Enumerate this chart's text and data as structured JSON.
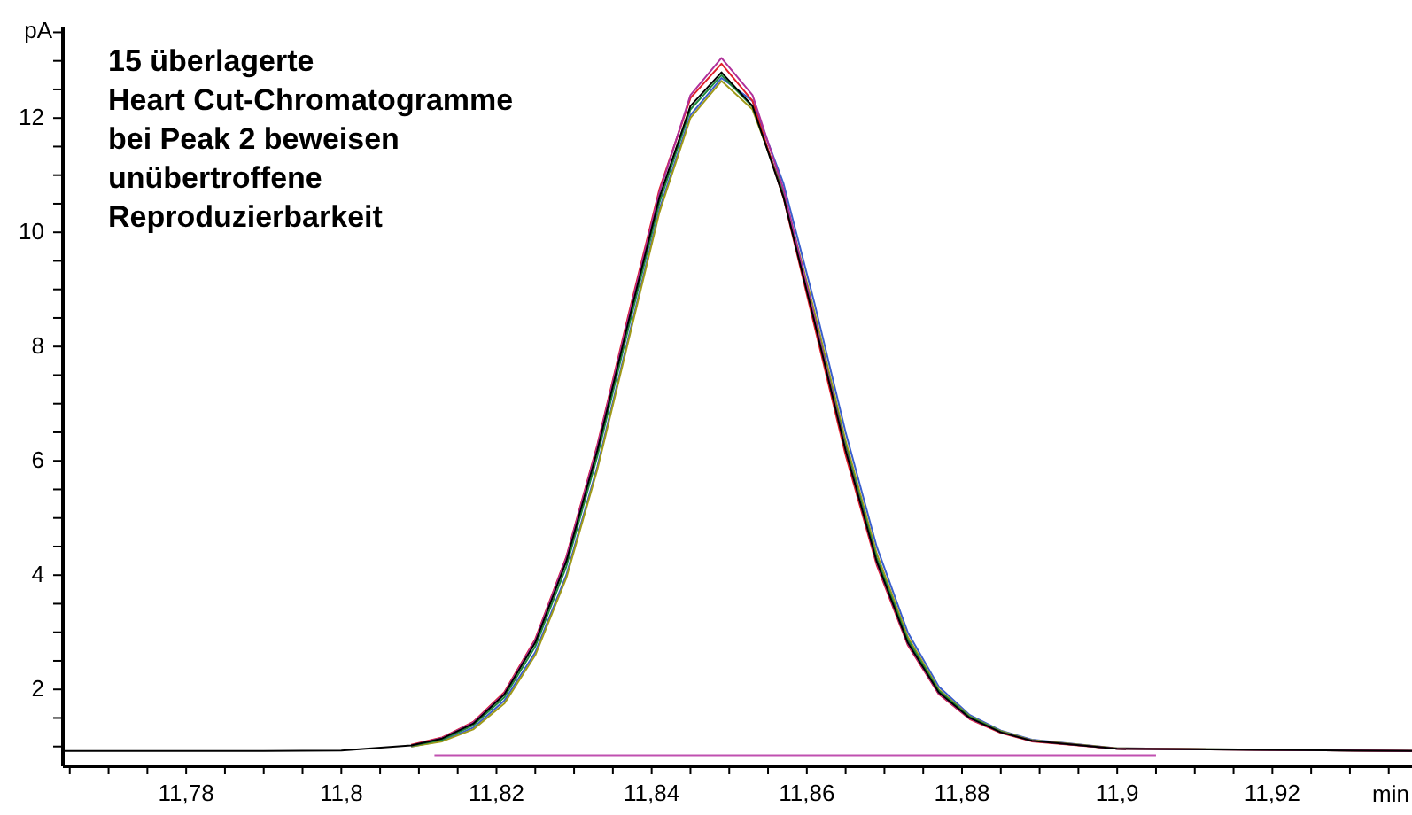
{
  "chart_data": {
    "type": "line",
    "title": "15 überlagerte\nHeart Cut-Chromatogramme\nbei Peak 2 beweisen\nunübertroffene\nReproduzierbarkeit",
    "xlabel": "min",
    "ylabel": "pA",
    "x": [
      11.764,
      11.79,
      11.8,
      11.809,
      11.813,
      11.817,
      11.821,
      11.825,
      11.829,
      11.833,
      11.837,
      11.841,
      11.845,
      11.849,
      11.853,
      11.857,
      11.861,
      11.865,
      11.869,
      11.873,
      11.877,
      11.881,
      11.885,
      11.889,
      11.9,
      11.938
    ],
    "series": [
      {
        "color": "#3a5fcd",
        "x": [
          11.809,
          11.813,
          11.817,
          11.821,
          11.825,
          11.829,
          11.833,
          11.837,
          11.841,
          11.845,
          11.849,
          11.853,
          11.857,
          11.861,
          11.865,
          11.869,
          11.873,
          11.877,
          11.881,
          11.885,
          11.889,
          11.9,
          11.938
        ],
        "values": [
          1.0,
          1.1,
          1.33,
          1.8,
          2.65,
          4.0,
          5.9,
          8.15,
          10.4,
          12.05,
          12.7,
          12.3,
          10.85,
          8.75,
          6.5,
          4.5,
          3.0,
          2.05,
          1.55,
          1.28,
          1.12,
          0.97,
          0.92
        ]
      },
      {
        "color": "#a09a1a",
        "x": [
          11.809,
          11.813,
          11.817,
          11.821,
          11.825,
          11.829,
          11.833,
          11.837,
          11.841,
          11.845,
          11.849,
          11.853,
          11.857,
          11.861,
          11.865,
          11.869,
          11.873,
          11.877,
          11.881,
          11.885,
          11.889,
          11.9,
          11.938
        ],
        "values": [
          1.0,
          1.09,
          1.3,
          1.75,
          2.6,
          3.95,
          5.85,
          8.1,
          10.35,
          12.0,
          12.65,
          12.15,
          10.7,
          8.6,
          6.35,
          4.38,
          2.92,
          2.0,
          1.53,
          1.27,
          1.11,
          0.97,
          0.92
        ]
      },
      {
        "color": "#1e8a3c",
        "x": [
          11.809,
          11.813,
          11.817,
          11.821,
          11.825,
          11.829,
          11.833,
          11.837,
          11.841,
          11.845,
          11.849,
          11.853,
          11.857,
          11.861,
          11.865,
          11.869,
          11.873,
          11.877,
          11.881,
          11.885,
          11.889,
          11.9,
          11.938
        ],
        "values": [
          1.01,
          1.12,
          1.37,
          1.86,
          2.75,
          4.15,
          6.08,
          8.32,
          10.52,
          12.15,
          12.75,
          12.2,
          10.68,
          8.5,
          6.26,
          4.3,
          2.87,
          1.98,
          1.52,
          1.26,
          1.1,
          0.96,
          0.92
        ]
      },
      {
        "color": "#e0202a",
        "x": [
          11.809,
          11.813,
          11.817,
          11.821,
          11.825,
          11.829,
          11.833,
          11.837,
          11.841,
          11.845,
          11.849,
          11.853,
          11.857,
          11.861,
          11.865,
          11.869,
          11.873,
          11.877,
          11.881,
          11.885,
          11.889,
          11.9,
          11.938
        ],
        "values": [
          1.03,
          1.16,
          1.43,
          1.95,
          2.88,
          4.32,
          6.28,
          8.55,
          10.75,
          12.35,
          12.95,
          12.3,
          10.6,
          8.35,
          6.1,
          4.18,
          2.78,
          1.92,
          1.48,
          1.24,
          1.09,
          0.96,
          0.92
        ]
      },
      {
        "color": "#b0309a",
        "x": [
          11.809,
          11.813,
          11.817,
          11.821,
          11.825,
          11.829,
          11.833,
          11.837,
          11.841,
          11.845,
          11.849,
          11.853,
          11.857,
          11.861,
          11.865,
          11.869,
          11.873,
          11.877,
          11.881,
          11.885,
          11.889,
          11.9,
          11.938
        ],
        "values": [
          1.02,
          1.15,
          1.42,
          1.93,
          2.86,
          4.3,
          6.25,
          8.5,
          10.7,
          12.4,
          13.05,
          12.4,
          10.75,
          8.5,
          6.2,
          4.22,
          2.8,
          1.93,
          1.49,
          1.25,
          1.1,
          0.96,
          0.92
        ]
      },
      {
        "color": "#000000",
        "values": [
          0.92,
          0.92,
          0.93,
          1.02,
          1.14,
          1.4,
          1.91,
          2.82,
          4.24,
          6.18,
          8.43,
          10.61,
          12.21,
          12.8,
          12.21,
          10.61,
          8.43,
          6.18,
          4.24,
          2.82,
          1.95,
          1.5,
          1.25,
          1.1,
          0.96,
          0.92
        ]
      },
      {
        "color": "#c050b0",
        "x": [
          11.812,
          11.905
        ],
        "values": [
          0.85,
          0.85
        ]
      }
    ],
    "xlim": [
      11.764,
      11.938
    ],
    "ylim": [
      0.67,
      13.6
    ],
    "xticks": [
      {
        "value": 11.765,
        "label": null
      },
      {
        "value": 11.77,
        "label": null
      },
      {
        "value": 11.775,
        "label": null
      },
      {
        "value": 11.78,
        "label": "11,78"
      },
      {
        "value": 11.785,
        "label": null
      },
      {
        "value": 11.79,
        "label": null
      },
      {
        "value": 11.795,
        "label": null
      },
      {
        "value": 11.8,
        "label": "11,8"
      },
      {
        "value": 11.805,
        "label": null
      },
      {
        "value": 11.81,
        "label": null
      },
      {
        "value": 11.815,
        "label": null
      },
      {
        "value": 11.82,
        "label": "11,82"
      },
      {
        "value": 11.825,
        "label": null
      },
      {
        "value": 11.83,
        "label": null
      },
      {
        "value": 11.835,
        "label": null
      },
      {
        "value": 11.84,
        "label": "11,84"
      },
      {
        "value": 11.845,
        "label": null
      },
      {
        "value": 11.85,
        "label": null
      },
      {
        "value": 11.855,
        "label": null
      },
      {
        "value": 11.86,
        "label": "11,86"
      },
      {
        "value": 11.865,
        "label": null
      },
      {
        "value": 11.87,
        "label": null
      },
      {
        "value": 11.875,
        "label": null
      },
      {
        "value": 11.88,
        "label": "11,88"
      },
      {
        "value": 11.885,
        "label": null
      },
      {
        "value": 11.89,
        "label": null
      },
      {
        "value": 11.895,
        "label": null
      },
      {
        "value": 11.9,
        "label": "11,9"
      },
      {
        "value": 11.905,
        "label": null
      },
      {
        "value": 11.91,
        "label": null
      },
      {
        "value": 11.915,
        "label": null
      },
      {
        "value": 11.92,
        "label": "11,92"
      },
      {
        "value": 11.925,
        "label": null
      },
      {
        "value": 11.93,
        "label": null
      },
      {
        "value": 11.935,
        "label": null
      }
    ],
    "yticks": [
      {
        "value": 1,
        "label": null
      },
      {
        "value": 1.5,
        "label": null
      },
      2,
      {
        "value": 2.5,
        "label": null
      },
      {
        "value": 3,
        "label": null
      },
      {
        "value": 3.5,
        "label": null
      },
      4,
      {
        "value": 4.5,
        "label": null
      },
      {
        "value": 5,
        "label": null
      },
      {
        "value": 5.5,
        "label": null
      },
      6,
      {
        "value": 6.5,
        "label": null
      },
      {
        "value": 7,
        "label": null
      },
      {
        "value": 7.5,
        "label": null
      },
      8,
      {
        "value": 8.5,
        "label": null
      },
      {
        "value": 9,
        "label": null
      },
      {
        "value": 9.5,
        "label": null
      },
      10,
      {
        "value": 10.5,
        "label": null
      },
      {
        "value": 11,
        "label": null
      },
      {
        "value": 11.5,
        "label": null
      },
      12,
      {
        "value": 12.5,
        "label": null
      },
      {
        "value": 13,
        "label": null
      },
      {
        "value": 13.5,
        "label": null
      }
    ],
    "grid": false,
    "line_style": "solid",
    "marker": "none"
  }
}
